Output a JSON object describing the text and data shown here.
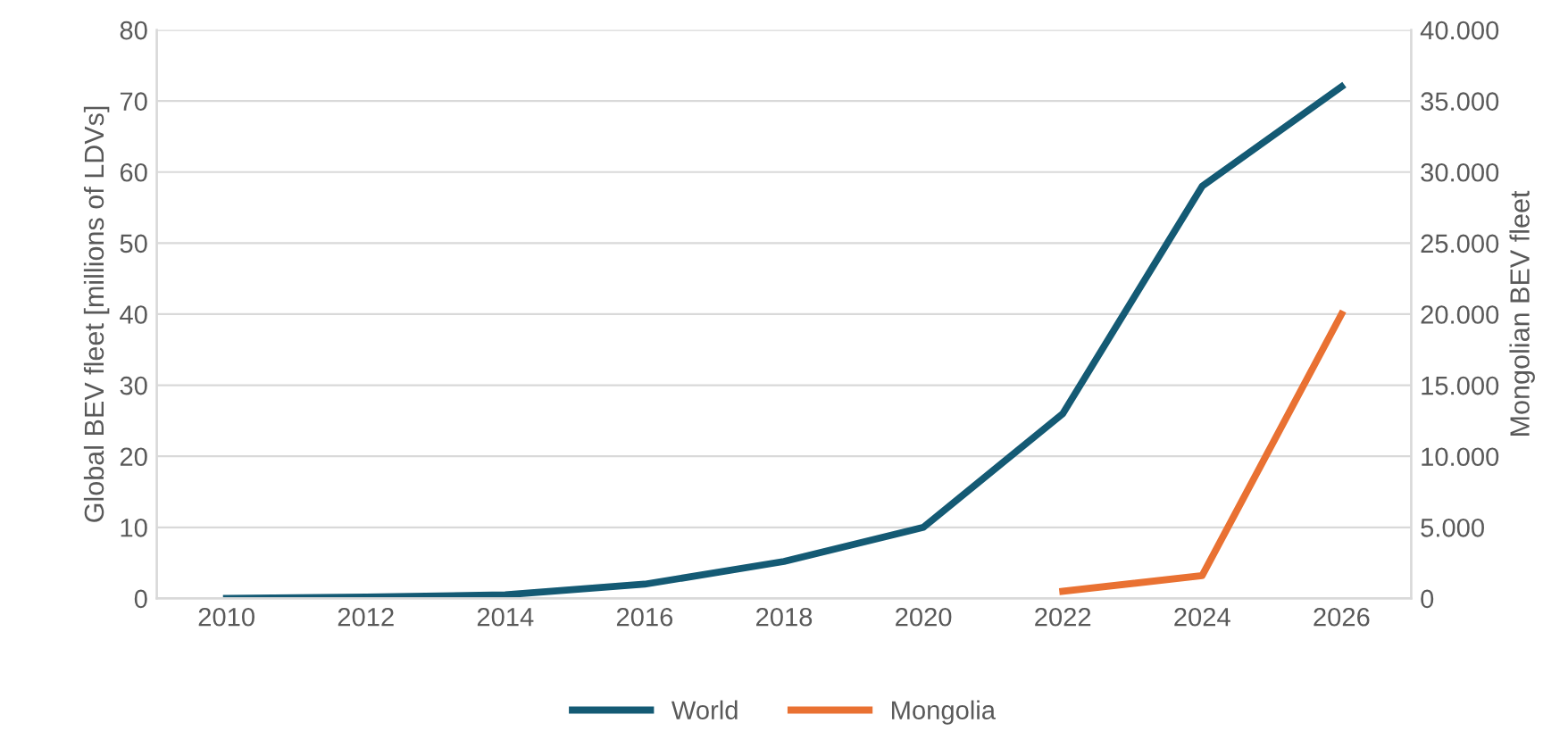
{
  "chart_data": {
    "type": "line",
    "ylabel": "Global BEV fleet [millions of LDVs]",
    "y2label": "Mongolian BEV fleet",
    "categories": [
      "2010",
      "2012",
      "2014",
      "2016",
      "2018",
      "2020",
      "2022",
      "2024",
      "2026"
    ],
    "series": [
      {
        "name": "World",
        "color": "#145a74",
        "values": [
          0,
          0.2,
          0.5,
          2,
          5.2,
          10,
          26,
          58,
          72
        ]
      },
      {
        "name": "Mongolia",
        "color": "#e97132",
        "axis": "y2",
        "values": [
          null,
          null,
          null,
          null,
          null,
          null,
          500,
          1600,
          20000
        ]
      }
    ],
    "ylim": [
      0,
      80
    ],
    "yticks": [
      0,
      10,
      20,
      30,
      40,
      50,
      60,
      70,
      80
    ],
    "y2lim": [
      0,
      40000
    ],
    "y2ticks": [
      {
        "value": 0,
        "label": "0"
      },
      {
        "value": 5000,
        "label": "5.000"
      },
      {
        "value": 10000,
        "label": "10.000"
      },
      {
        "value": 15000,
        "label": "15.000"
      },
      {
        "value": 20000,
        "label": "20.000"
      },
      {
        "value": 25000,
        "label": "25.000"
      },
      {
        "value": 30000,
        "label": "30.000"
      },
      {
        "value": 35000,
        "label": "35.000"
      },
      {
        "value": 40000,
        "label": "40.000"
      }
    ],
    "grid": "y",
    "legend": "bottom",
    "line_style": "solid",
    "marker": "none"
  }
}
